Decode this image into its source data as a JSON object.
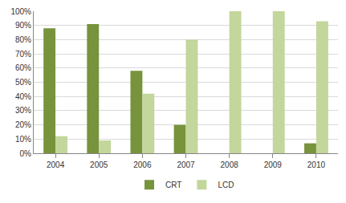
{
  "chart_data": {
    "type": "bar",
    "categories": [
      "2004",
      "2005",
      "2006",
      "2007",
      "2008",
      "2009",
      "2010"
    ],
    "series": [
      {
        "name": "CRT",
        "color": "#77933c",
        "values": [
          88,
          91,
          58,
          20,
          0,
          0,
          7
        ]
      },
      {
        "name": "LCD",
        "color": "#c3d69b",
        "values": [
          12,
          9,
          42,
          80,
          100,
          100,
          93
        ]
      }
    ],
    "ylim": [
      0,
      100
    ],
    "yticks": [
      {
        "value": 0,
        "label": "0%"
      },
      {
        "value": 10,
        "label": "10%"
      },
      {
        "value": 20,
        "label": "20%"
      },
      {
        "value": 30,
        "label": "30%"
      },
      {
        "value": 40,
        "label": "40%"
      },
      {
        "value": 50,
        "label": "50%"
      },
      {
        "value": 60,
        "label": "60%"
      },
      {
        "value": 70,
        "label": "70%"
      },
      {
        "value": 80,
        "label": "80%"
      },
      {
        "value": 90,
        "label": "90%"
      },
      {
        "value": 100,
        "label": "100%"
      }
    ],
    "grid": true,
    "legend": "bottom"
  }
}
